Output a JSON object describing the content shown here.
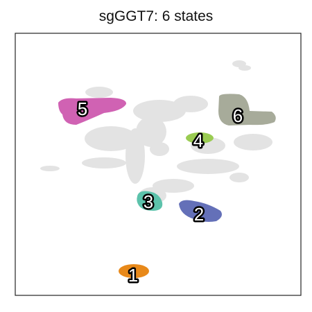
{
  "chart_data": {
    "type": "scatter",
    "title": "sgGGT7: 6 states",
    "xlabel": "",
    "ylabel": "",
    "grid": false,
    "legend": "none",
    "background_points_color": "#e3e3e3",
    "clusters": [
      {
        "label": "1",
        "color": "#e8891a"
      },
      {
        "label": "2",
        "color": "#6470b8"
      },
      {
        "label": "3",
        "color": "#5cc2ab"
      },
      {
        "label": "4",
        "color": "#9acc52"
      },
      {
        "label": "5",
        "color": "#d062b3"
      },
      {
        "label": "6",
        "color": "#a7ab9a"
      }
    ]
  }
}
